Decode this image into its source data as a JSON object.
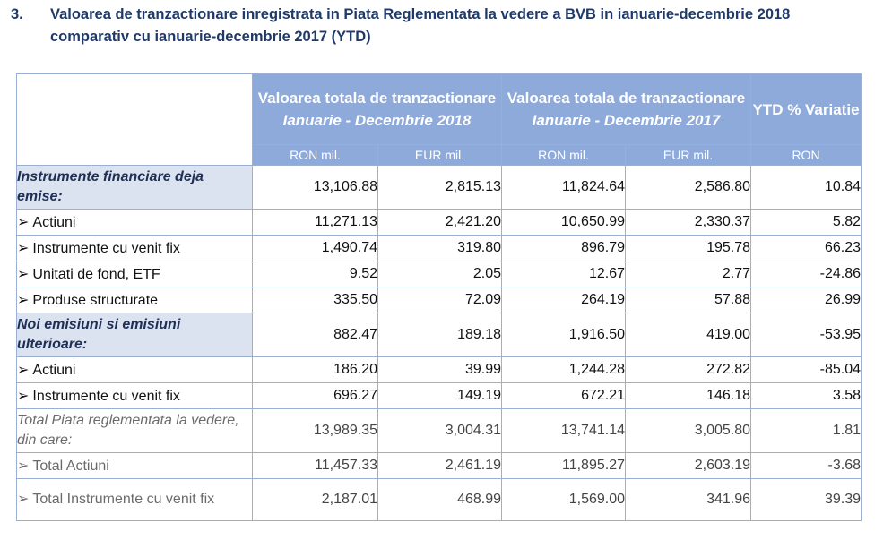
{
  "heading": {
    "number": "3.",
    "text": "Valoarea de tranzactionare inregistrata in Piata Reglementata la vedere a BVB in ianuarie-decembrie 2018 comparativ cu ianuarie-decembrie 2017 (YTD)"
  },
  "table": {
    "col_2018": {
      "title": "Valoarea totala de tranzactionare",
      "period": "Ianuarie - Decembrie 2018"
    },
    "col_2017": {
      "title": "Valoarea totala de tranzactionare",
      "period": "Ianuarie - Decembrie 2017"
    },
    "col_ytd": {
      "title": "YTD % Variatie"
    },
    "units": [
      "RON mil.",
      "EUR mil.",
      "RON mil.",
      "EUR mil.",
      "RON"
    ],
    "rows": [
      {
        "label": "Instrumente financiare  deja emise:",
        "values": [
          "13,106.88",
          "2,815.13",
          "11,824.64",
          "2,586.80",
          "10.84"
        ]
      },
      {
        "label": "Actiuni",
        "values": [
          "11,271.13",
          "2,421.20",
          "10,650.99",
          "2,330.37",
          "5.82"
        ]
      },
      {
        "label": "Instrumente cu venit fix",
        "values": [
          "1,490.74",
          "319.80",
          "896.79",
          "195.78",
          "66.23"
        ]
      },
      {
        "label": "Unitati de fond, ETF",
        "values": [
          "9.52",
          "2.05",
          "12.67",
          "2.77",
          "-24.86"
        ]
      },
      {
        "label": "Produse structurate",
        "values": [
          "335.50",
          "72.09",
          "264.19",
          "57.88",
          "26.99"
        ]
      },
      {
        "label": "Noi emisiuni si emisiuni ulterioare:",
        "values": [
          "882.47",
          "189.18",
          "1,916.50",
          "419.00",
          "-53.95"
        ]
      },
      {
        "label": "Actiuni",
        "values": [
          "186.20",
          "39.99",
          "1,244.28",
          "272.82",
          "-85.04"
        ]
      },
      {
        "label": "Instrumente cu venit fix",
        "values": [
          "696.27",
          "149.19",
          "672.21",
          "146.18",
          "3.58"
        ]
      },
      {
        "label": "Total Piata reglementata la vedere, din care:",
        "values": [
          "13,989.35",
          "3,004.31",
          "13,741.14",
          "3,005.80",
          "1.81"
        ]
      },
      {
        "label": "Total Actiuni",
        "values": [
          "11,457.33",
          "2,461.19",
          "11,895.27",
          "2,603.19",
          "-3.68"
        ]
      },
      {
        "label": "Total Instrumente cu venit fix",
        "values": [
          "2,187.01",
          "468.99",
          "1,569.00",
          "341.96",
          "39.39"
        ]
      }
    ]
  },
  "icons": {
    "bullet": "arrowhead-bullet-icon"
  },
  "colors": {
    "header_bg": "#8eaadb",
    "category_bg": "#dbe3f1",
    "heading_text": "#1f3a68",
    "border": "#9ab0d2"
  }
}
